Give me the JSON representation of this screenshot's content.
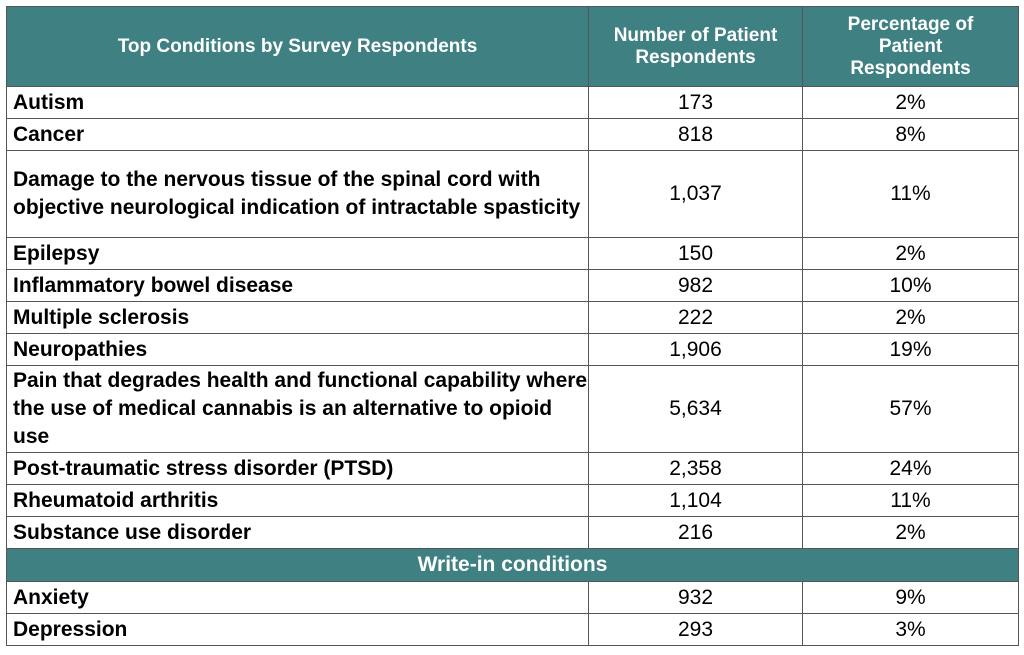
{
  "header": {
    "condition": "Top Conditions by Survey Respondents",
    "number": "Number of Patient Respondents",
    "percentage": "Percentage of Patient Respondents"
  },
  "rows": [
    {
      "condition": "Autism",
      "number": "173",
      "percentage": "2%"
    },
    {
      "condition": "Cancer",
      "number": "818",
      "percentage": "8%"
    },
    {
      "condition": "Damage to the nervous tissue of the spinal cord with objective neurological indication of intractable spasticity",
      "number": "1,037",
      "percentage": "11%"
    },
    {
      "condition": "Epilepsy",
      "number": "150",
      "percentage": "2%"
    },
    {
      "condition": "Inflammatory bowel disease",
      "number": "982",
      "percentage": "10%"
    },
    {
      "condition": "Multiple sclerosis",
      "number": "222",
      "percentage": "2%"
    },
    {
      "condition": "Neuropathies",
      "number": "1,906",
      "percentage": "19%"
    },
    {
      "condition": "Pain that degrades health and functional capability where the use of medical cannabis is an alternative to opioid use",
      "number": "5,634",
      "percentage": "57%"
    },
    {
      "condition": "Post-traumatic stress disorder (PTSD)",
      "number": "2,358",
      "percentage": "24%"
    },
    {
      "condition": "Rheumatoid arthritis",
      "number": "1,104",
      "percentage": "11%"
    },
    {
      "condition": "Substance use disorder",
      "number": "216",
      "percentage": "2%"
    }
  ],
  "write_in": {
    "title": "Write-in conditions",
    "rows": [
      {
        "condition": "Anxiety",
        "number": "932",
        "percentage": "9%"
      },
      {
        "condition": "Depression",
        "number": "293",
        "percentage": "3%"
      }
    ]
  },
  "colors": {
    "header_bg": "#3f8082",
    "header_text": "#ffffff"
  }
}
